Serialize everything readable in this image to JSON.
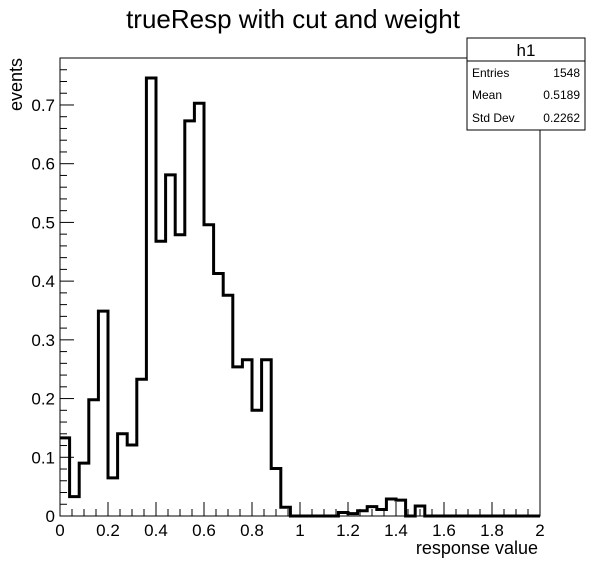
{
  "chart_data": {
    "type": "histogram",
    "title": "trueResp with cut and weight",
    "xlabel": "response value",
    "ylabel": "events",
    "xlim": [
      0,
      2
    ],
    "ylim": [
      0,
      0.78
    ],
    "bin_width": 0.04,
    "x_ticks": [
      "0",
      "0.2",
      "0.4",
      "0.6",
      "0.8",
      "1",
      "1.2",
      "1.4",
      "1.6",
      "1.8",
      "2"
    ],
    "y_ticks": [
      "0",
      "0.1",
      "0.2",
      "0.3",
      "0.4",
      "0.5",
      "0.6",
      "0.7"
    ],
    "values": [
      0.133,
      0.033,
      0.09,
      0.198,
      0.349,
      0.065,
      0.14,
      0.121,
      0.233,
      0.746,
      0.468,
      0.581,
      0.479,
      0.673,
      0.703,
      0.496,
      0.413,
      0.376,
      0.254,
      0.266,
      0.18,
      0.266,
      0.081,
      0.015,
      0.0,
      0.0,
      0.0,
      0.0,
      0.0,
      0.006,
      0.004,
      0.009,
      0.016,
      0.011,
      0.029,
      0.027,
      0.0,
      0.017,
      0.0,
      0.0,
      0.0,
      0.0,
      0.0,
      0.0,
      0.0,
      0.0,
      0.0,
      0.0,
      0.0,
      0.0
    ],
    "legend": "none",
    "grid": false,
    "stats_box": {
      "name": "h1",
      "rows": [
        {
          "label": "Entries",
          "value": "1548"
        },
        {
          "label": "Mean",
          "value": "0.5189"
        },
        {
          "label": "Std Dev",
          "value": "0.2262"
        }
      ]
    }
  }
}
